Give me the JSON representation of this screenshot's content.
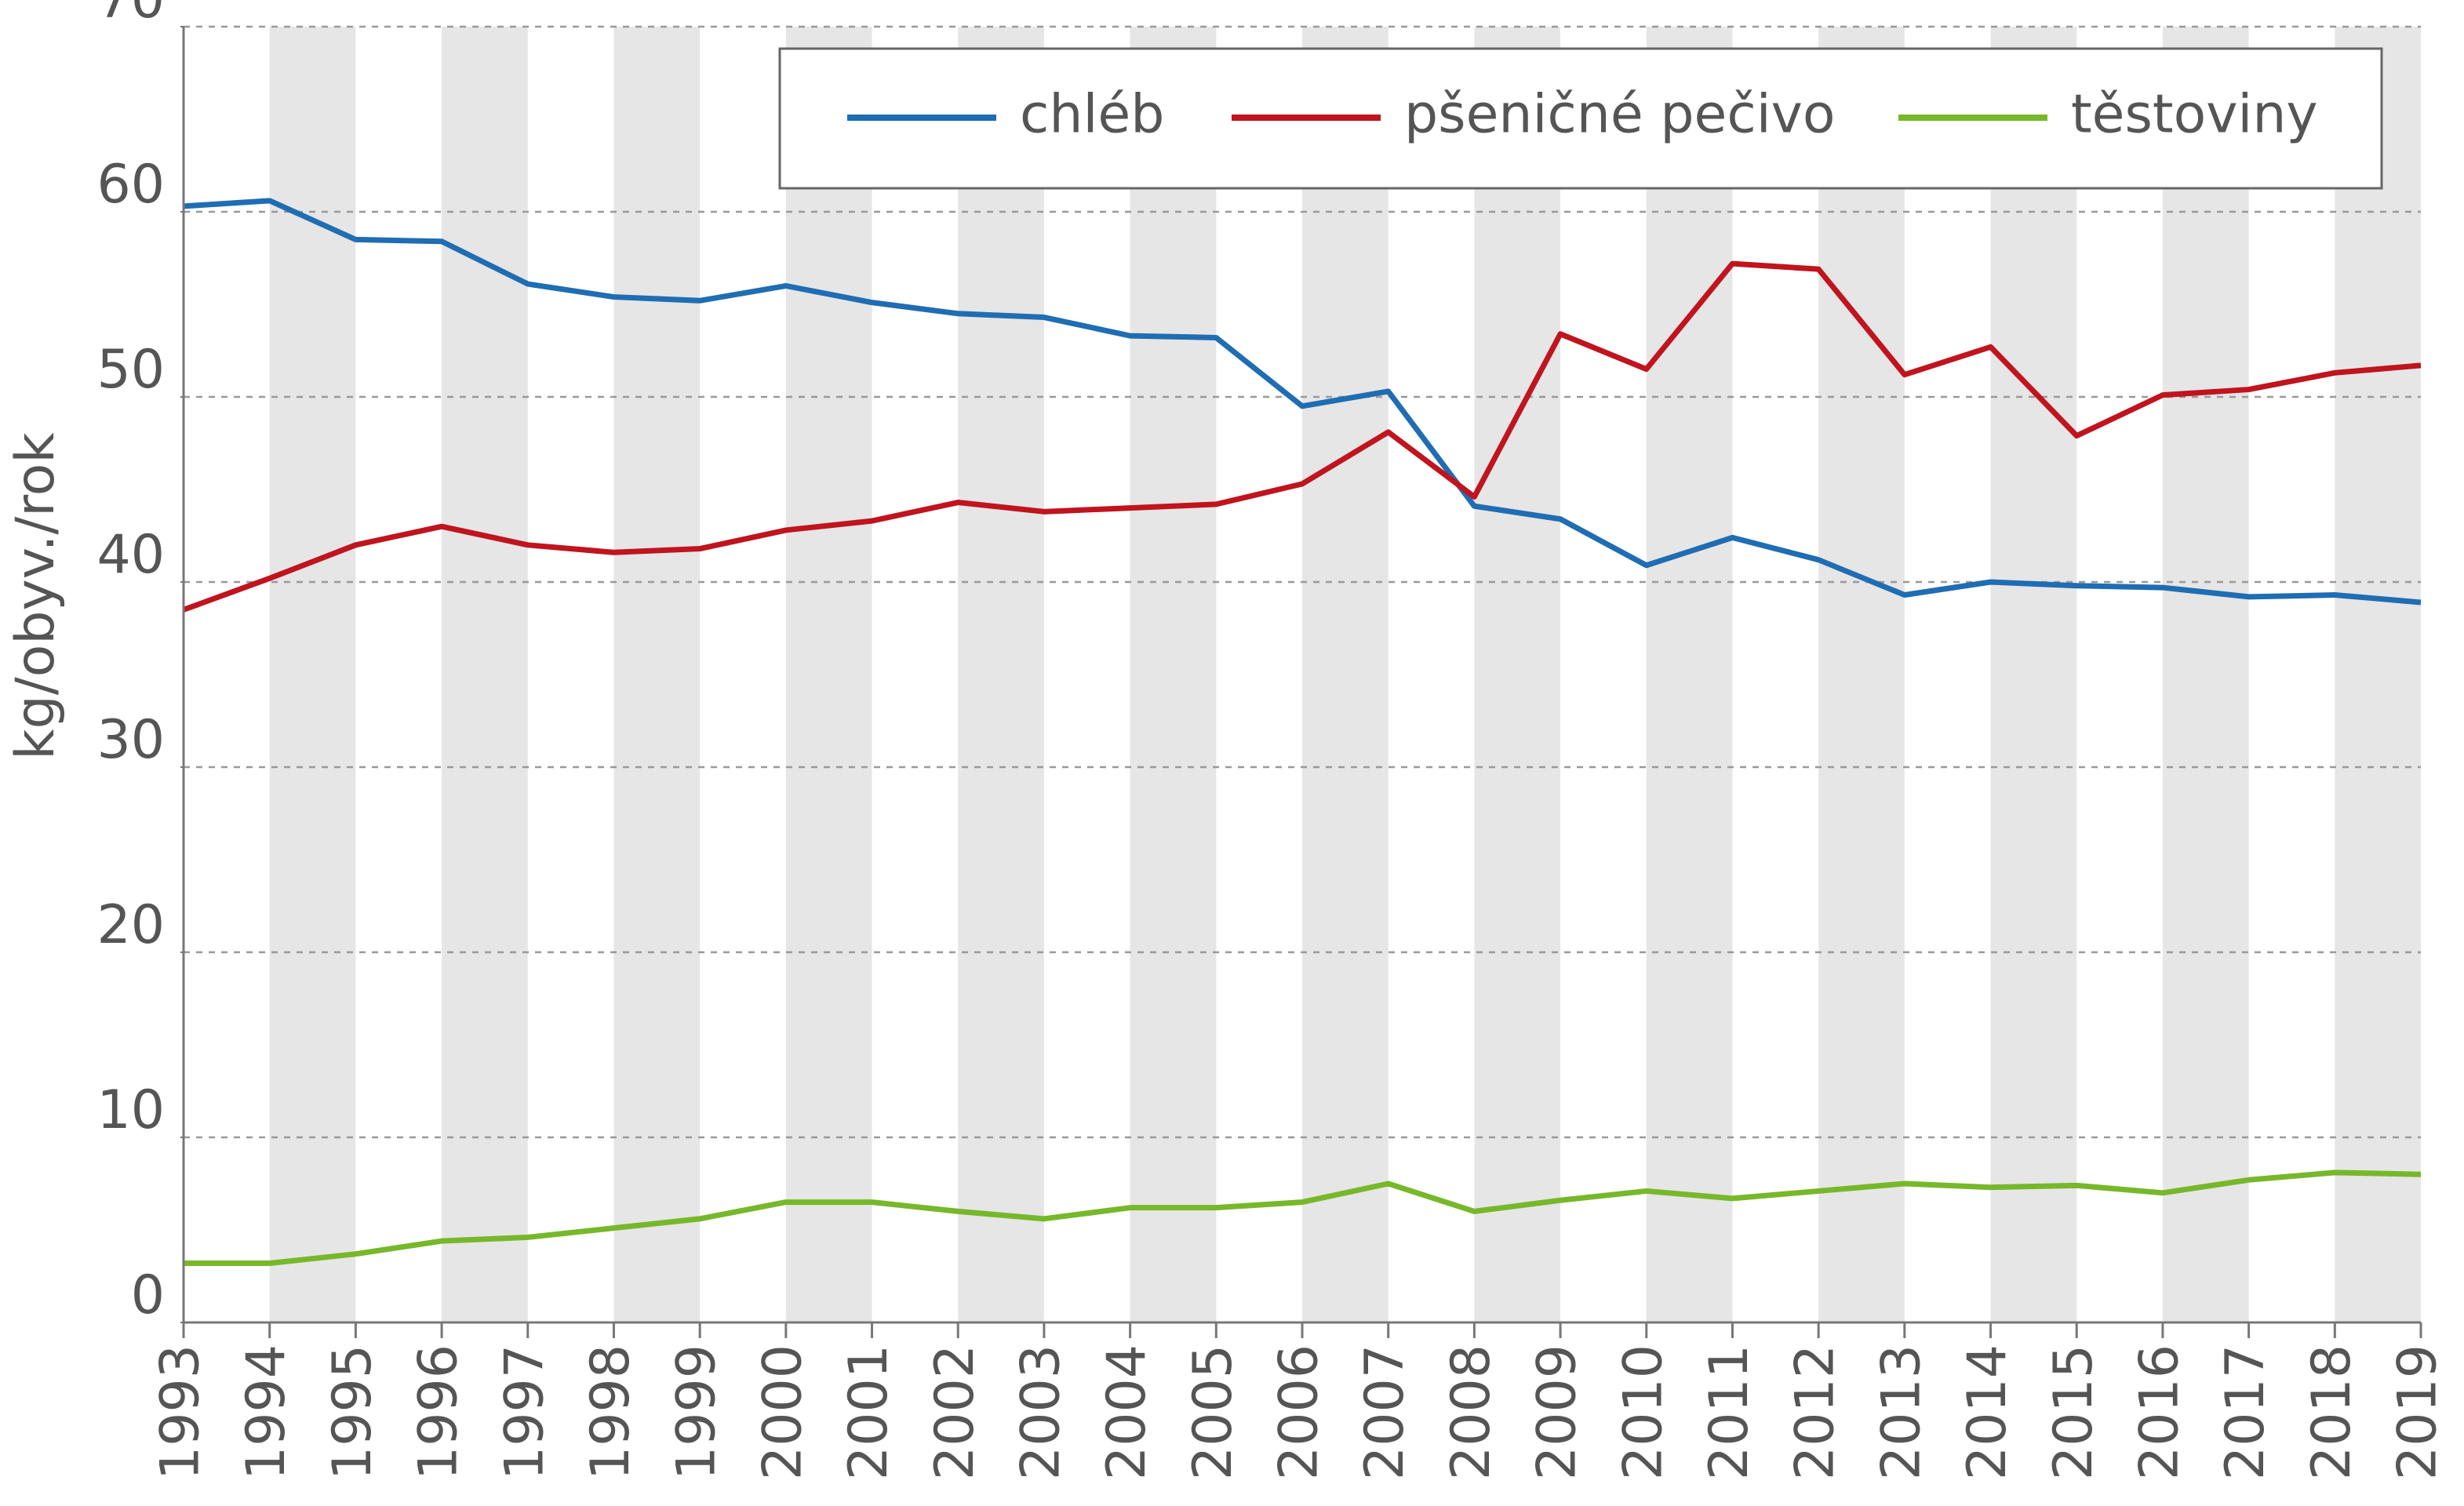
{
  "chart_data": {
    "type": "line",
    "ylabel": "kg/obyv./rok",
    "x": [
      1993,
      1994,
      1995,
      1996,
      1997,
      1998,
      1999,
      2000,
      2001,
      2002,
      2003,
      2004,
      2005,
      2006,
      2007,
      2008,
      2009,
      2010,
      2011,
      2012,
      2013,
      2014,
      2015,
      2016,
      2017,
      2018,
      2019
    ],
    "xlim": [
      1993,
      2019
    ],
    "xticks": [
      1993,
      1994,
      1995,
      1996,
      1997,
      1998,
      1999,
      2000,
      2001,
      2002,
      2003,
      2004,
      2005,
      2006,
      2007,
      2008,
      2009,
      2010,
      2011,
      2012,
      2013,
      2014,
      2015,
      2016,
      2017,
      2018,
      2019
    ],
    "ylim": [
      0,
      70
    ],
    "yticks": [
      0,
      10,
      20,
      30,
      40,
      50,
      60,
      70
    ],
    "grid": true,
    "legend": "top-right",
    "series": [
      {
        "name": "chléb",
        "color": "#1f6db3",
        "values": [
          60.3,
          60.6,
          58.5,
          58.4,
          56.1,
          55.4,
          55.2,
          56.0,
          55.1,
          54.5,
          54.3,
          53.3,
          53.2,
          49.5,
          50.3,
          44.1,
          43.4,
          40.9,
          42.4,
          41.2,
          39.3,
          40.0,
          39.8,
          39.7,
          39.2,
          39.3,
          38.9
        ]
      },
      {
        "name": "pšeničné pečivo",
        "color": "#c0141e",
        "values": [
          38.5,
          40.2,
          42.0,
          43.0,
          42.0,
          41.6,
          41.8,
          42.8,
          43.3,
          44.3,
          43.8,
          44.0,
          44.2,
          45.3,
          48.1,
          44.6,
          53.4,
          51.5,
          57.2,
          56.9,
          51.2,
          52.7,
          47.9,
          50.1,
          50.4,
          51.3,
          51.7
        ]
      },
      {
        "name": "těstoviny",
        "color": "#77b82a",
        "values": [
          3.2,
          3.2,
          3.7,
          4.4,
          4.6,
          5.1,
          5.6,
          6.5,
          6.5,
          6.0,
          5.6,
          6.2,
          6.2,
          6.5,
          7.5,
          6.0,
          6.6,
          7.1,
          6.7,
          7.1,
          7.5,
          7.3,
          7.4,
          7.0,
          7.7,
          8.1,
          8.0
        ]
      }
    ]
  }
}
